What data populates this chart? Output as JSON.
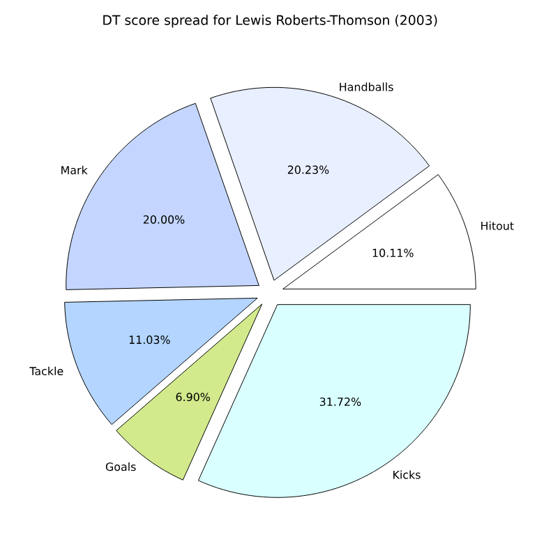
{
  "chart_data": {
    "type": "pie",
    "title": "DT score spread for Lewis Roberts-Thomson (2003)",
    "categories": [
      "Hitout",
      "Handballs",
      "Mark",
      "Tackle",
      "Goals",
      "Kicks"
    ],
    "values": [
      10.11,
      20.23,
      20.0,
      11.03,
      6.9,
      31.72
    ],
    "value_labels": [
      "10.11%",
      "20.23%",
      "20.00%",
      "11.03%",
      "6.90%",
      "31.72%"
    ],
    "colors": [
      "#ffffff",
      "#e8efff",
      "#c4d6ff",
      "#b3d5ff",
      "#d2ea8c",
      "#d9ffff"
    ]
  }
}
